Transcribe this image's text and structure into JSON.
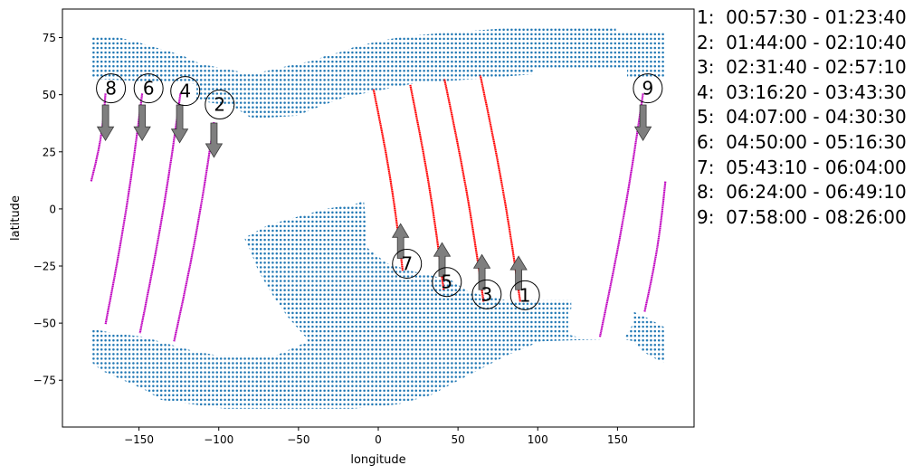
{
  "chart_data": {
    "type": "scatter",
    "xlabel": "longitude",
    "ylabel": "latitude",
    "xlim": [
      -198,
      198
    ],
    "ylim": [
      -95.5,
      87.5
    ],
    "xticks": [
      -150,
      -100,
      -50,
      0,
      50,
      100,
      150
    ],
    "yticks": [
      75,
      50,
      25,
      0,
      -25,
      -50,
      -75
    ],
    "grid": false,
    "colors": {
      "dots": "#1f77b4",
      "ascending": "#ff0000",
      "descending": "#bf00bf",
      "arrow": "#7f7f7f"
    },
    "regions": [
      {
        "name": "north",
        "points": [
          [
            -180,
            77
          ],
          [
            -180,
            75.4
          ],
          [
            -165,
            75.4
          ],
          [
            -152.5,
            73.3
          ],
          [
            -141,
            71
          ],
          [
            -131,
            69
          ],
          [
            -122,
            67
          ],
          [
            -117,
            65
          ],
          [
            -108,
            63
          ],
          [
            -93,
            61
          ],
          [
            -80,
            59
          ],
          [
            -66,
            61
          ],
          [
            -54.5,
            63
          ],
          [
            -40,
            65
          ],
          [
            -33,
            67
          ],
          [
            -22,
            69
          ],
          [
            -15,
            71
          ],
          [
            0,
            73.3
          ],
          [
            15,
            75.4
          ],
          [
            39.5,
            77
          ],
          [
            77.7,
            79
          ],
          [
            149,
            79
          ],
          [
            149,
            77
          ],
          [
            180,
            77
          ],
          [
            180,
            57
          ],
          [
            156,
            57
          ],
          [
            156,
            61
          ],
          [
            97,
            61
          ],
          [
            97,
            59
          ],
          [
            63.6,
            57
          ],
          [
            23,
            55
          ],
          [
            5,
            52.5
          ],
          [
            -20.5,
            49
          ],
          [
            -36,
            45
          ],
          [
            -51,
            40.8
          ],
          [
            -79,
            39.5
          ],
          [
            -91.5,
            45
          ],
          [
            -114,
            47.5
          ],
          [
            -114,
            54.8
          ],
          [
            -180,
            57
          ]
        ]
      },
      {
        "name": "south",
        "points": [
          [
            -9,
            3.5
          ],
          [
            -7.5,
            -7.5
          ],
          [
            -7,
            -17
          ],
          [
            5,
            -23.6
          ],
          [
            20,
            -27
          ],
          [
            45.8,
            -31.2
          ],
          [
            57,
            -36.5
          ],
          [
            80,
            -40
          ],
          [
            121,
            -40
          ],
          [
            121,
            -43.7
          ],
          [
            119,
            -45
          ],
          [
            119,
            -55
          ],
          [
            124.7,
            -56
          ],
          [
            145,
            -57
          ],
          [
            101.7,
            -58
          ],
          [
            81,
            -64
          ],
          [
            56,
            -73
          ],
          [
            33,
            -81.5
          ],
          [
            12.8,
            -85.5
          ],
          [
            -15.5,
            -87.5
          ],
          [
            -96.6,
            -87.5
          ],
          [
            -136,
            -83.6
          ],
          [
            -147,
            -79
          ],
          [
            -160,
            -75
          ],
          [
            -173,
            -71
          ],
          [
            -180,
            -67
          ],
          [
            -180,
            -52.4
          ],
          [
            -165,
            -54.5
          ],
          [
            -147,
            -56
          ],
          [
            -137.5,
            -58
          ],
          [
            -117,
            -62
          ],
          [
            -102,
            -64
          ],
          [
            -63.6,
            -64
          ],
          [
            -44,
            -58
          ],
          [
            -45.7,
            -56
          ],
          [
            -57,
            -47
          ],
          [
            -66,
            -38
          ],
          [
            -75,
            -27.5
          ],
          [
            -81,
            -17
          ],
          [
            -84,
            -12.7
          ],
          [
            -69,
            -7
          ],
          [
            -51,
            -3.5
          ],
          [
            -33,
            0
          ],
          [
            -15,
            2
          ]
        ]
      },
      {
        "name": "southeast",
        "points": [
          [
            160,
            -45
          ],
          [
            168,
            -47.5
          ],
          [
            180,
            -52
          ],
          [
            180,
            -67.5
          ],
          [
            172,
            -65
          ],
          [
            165,
            -62
          ],
          [
            160,
            -58
          ],
          [
            154,
            -57
          ],
          [
            160,
            -50
          ]
        ]
      }
    ],
    "passes": [
      {
        "id": "1",
        "color": "ascending",
        "segments": [
          [
            [
              89,
              -40.6
            ],
            [
              64,
              58.4
            ]
          ]
        ],
        "label": [
          92,
          -37.8
        ],
        "arrow": [
          88,
          -35.4,
          -20.7
        ]
      },
      {
        "id": "2",
        "color": "descending",
        "segments": [
          [
            [
              -103,
              38
            ],
            [
              -128,
              -58
            ]
          ]
        ],
        "label": [
          -99.4,
          45.7
        ],
        "arrow": [
          -103,
          37.6,
          22.6
        ]
      },
      {
        "id": "3",
        "color": "ascending",
        "segments": [
          [
            [
              66,
              -40.6
            ],
            [
              41.5,
              56.8
            ]
          ]
        ],
        "label": [
          68,
          -37.4
        ],
        "arrow": [
          65,
          -35.4,
          -20
        ]
      },
      {
        "id": "4",
        "color": "descending",
        "segments": [
          [
            [
              -124,
              50.5
            ],
            [
              -149.4,
              -54.4
            ]
          ]
        ],
        "label": [
          -121,
          51.6
        ],
        "arrow": [
          -124.5,
          45.5,
          29
        ]
      },
      {
        "id": "5",
        "color": "ascending",
        "segments": [
          [
            [
              41,
              -35.4
            ],
            [
              20,
              54.4
            ]
          ]
        ],
        "label": [
          43,
          -32
        ],
        "arrow": [
          40,
          -29.5,
          -14.8
        ]
      },
      {
        "id": "6",
        "color": "descending",
        "segments": [
          [
            [
              -148,
              50.5
            ],
            [
              -171,
              -50.5
            ]
          ]
        ],
        "label": [
          -144,
          52.8
        ],
        "arrow": [
          -148,
          45.5,
          30
        ]
      },
      {
        "id": "7",
        "color": "ascending",
        "segments": [
          [
            [
              15.3,
              -27
            ],
            [
              -3,
              52.4
            ]
          ]
        ],
        "label": [
          18,
          -24
        ],
        "arrow": [
          14,
          -21.6,
          -6.5
        ]
      },
      {
        "id": "8",
        "color": "descending",
        "segments": [
          [
            [
              -171,
              50.5
            ],
            [
              -180,
              12
            ]
          ],
          [
            [
              180,
              12
            ],
            [
              167,
              -45
            ]
          ]
        ],
        "label": [
          -167.6,
          52.8
        ],
        "arrow": [
          -171,
          45.5,
          30
        ]
      },
      {
        "id": "9",
        "color": "descending",
        "segments": [
          [
            [
              166,
              50.5
            ],
            [
              139,
              -56
            ]
          ]
        ],
        "label": [
          169,
          52.8
        ],
        "arrow": [
          166,
          45.5,
          30
        ]
      }
    ],
    "legend": [
      "1:  00:57:30 - 01:23:40",
      "2:  01:44:00 - 02:10:40",
      "3:  02:31:40 - 02:57:10",
      "4:  03:16:20 - 03:43:30",
      "5:  04:07:00 - 04:30:30",
      "6:  04:50:00 - 05:16:30",
      "7:  05:43:10 - 06:04:00",
      "8:  06:24:00 - 06:49:10",
      "9:  07:58:00 - 08:26:00"
    ]
  }
}
